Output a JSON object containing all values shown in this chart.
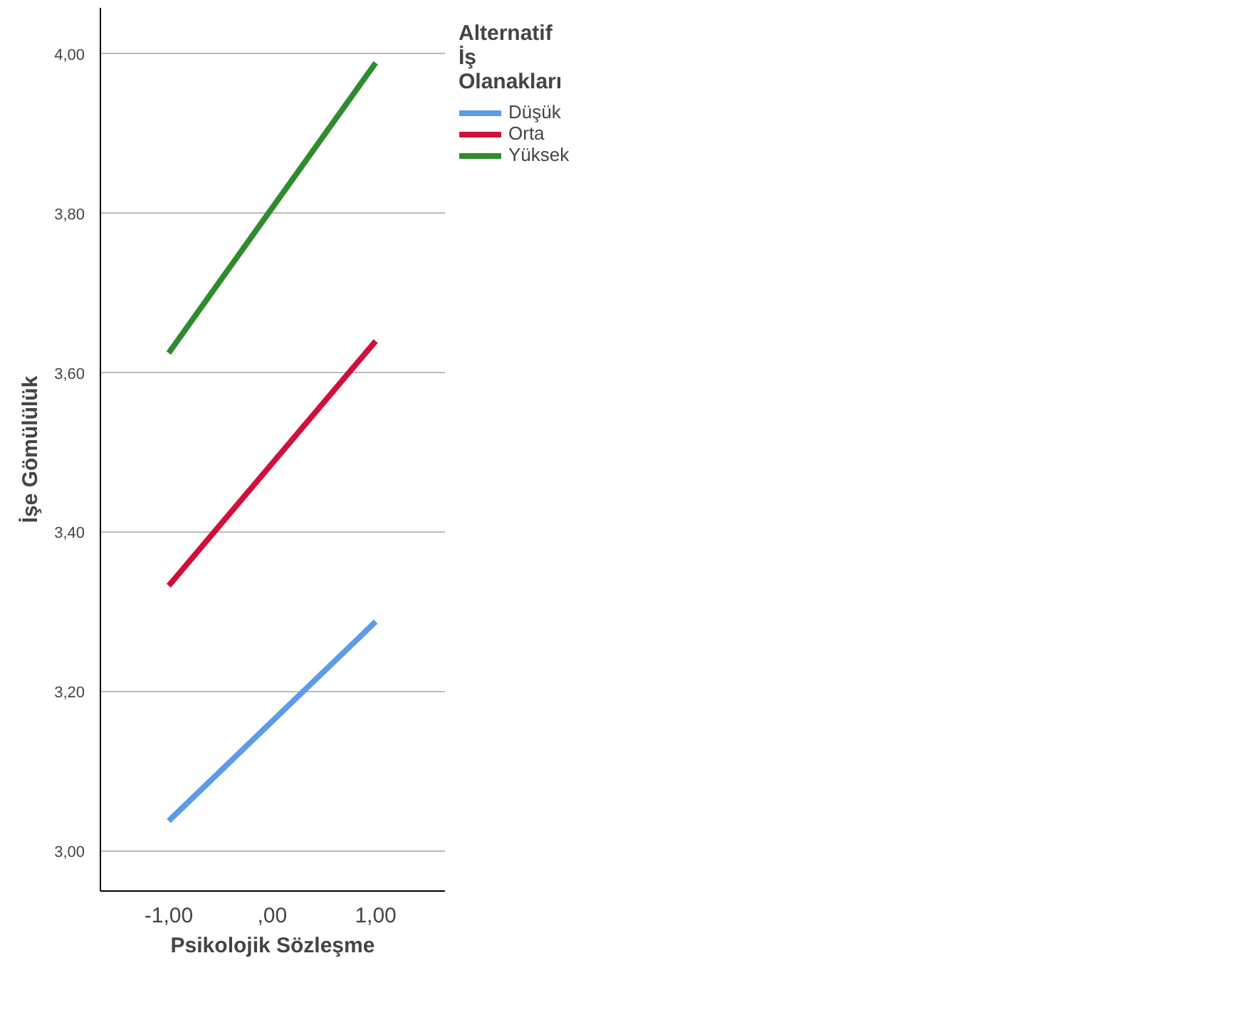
{
  "chart_data": {
    "type": "line",
    "xlabel": "Psikolojik Sözleşme",
    "ylabel": "İşe Gömülülük",
    "legend_title": "Alternatif İş Olanakları",
    "x": [
      -1,
      1
    ],
    "series": [
      {
        "name": "Düşük",
        "color": "#5b9bea",
        "values": [
          3.038,
          3.288
        ]
      },
      {
        "name": "Orta",
        "color": "#d0103a",
        "values": [
          3.333,
          3.64
        ]
      },
      {
        "name": "Yüksek",
        "color": "#2e8b2e",
        "values": [
          3.625,
          3.989
        ]
      }
    ],
    "xlim": [
      -1.66,
      1.67
    ],
    "ylim": [
      2.95,
      4.058
    ],
    "xticks": [
      {
        "value": -1,
        "label": "-1,00"
      },
      {
        "value": 0,
        "label": ",00"
      },
      {
        "value": 1,
        "label": "1,00"
      }
    ],
    "yticks": [
      {
        "value": 3,
        "label": "3,00"
      },
      {
        "value": 3.2,
        "label": "3,20"
      },
      {
        "value": 3.4,
        "label": "3,40"
      },
      {
        "value": 3.6,
        "label": "3,60"
      },
      {
        "value": 3.8,
        "label": "3,80"
      },
      {
        "value": 4,
        "label": "4,00"
      }
    ],
    "grid": "y",
    "legend": "top right",
    "marker": "none",
    "line_style": "solid"
  }
}
